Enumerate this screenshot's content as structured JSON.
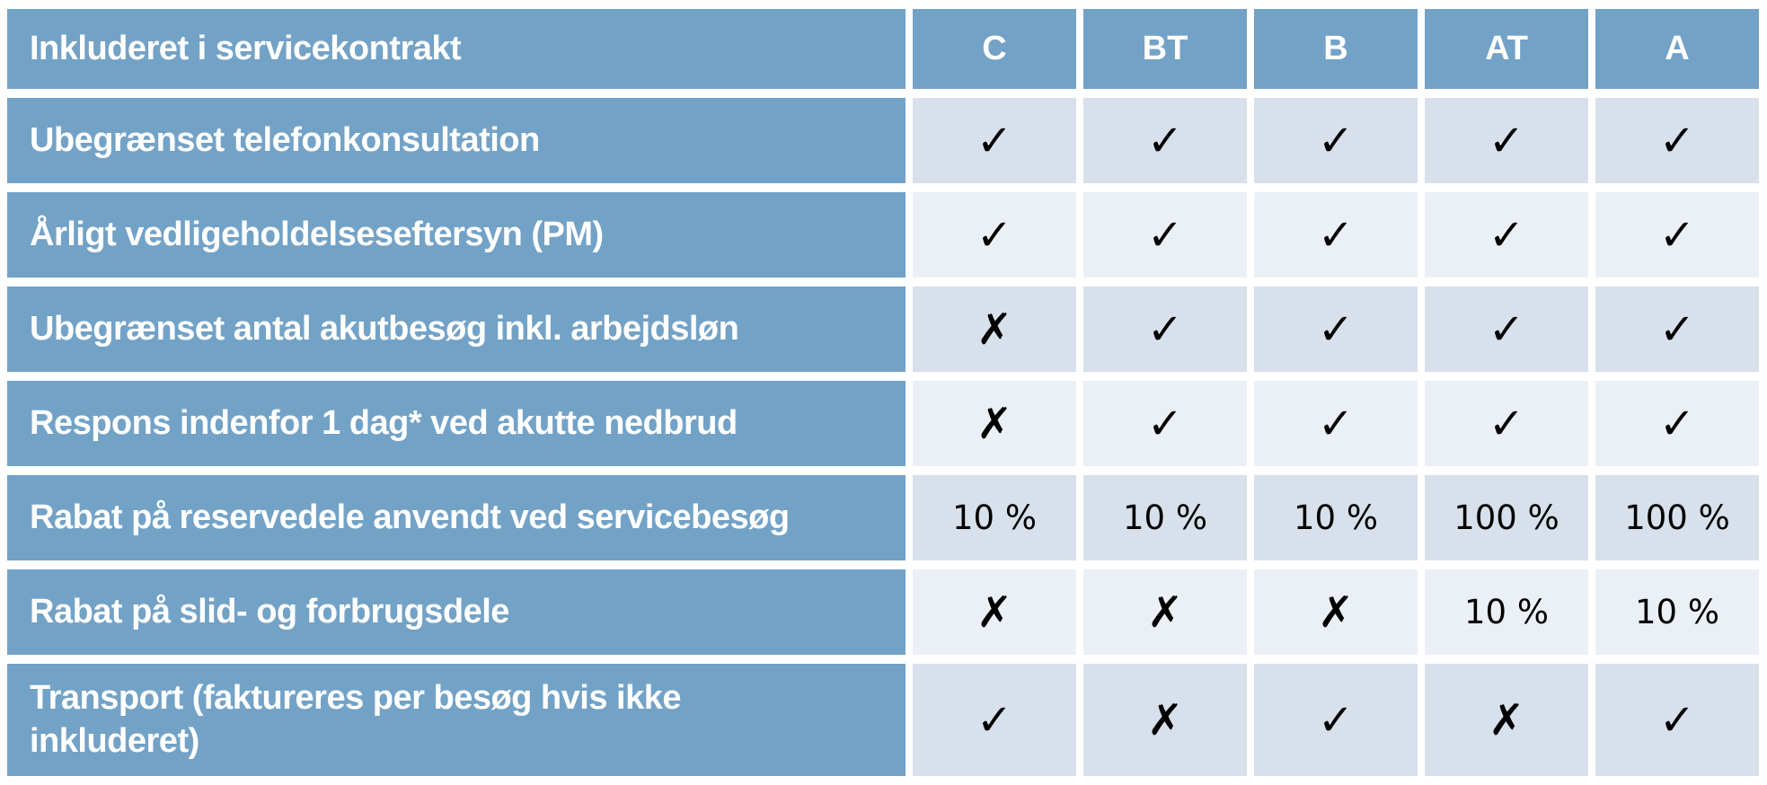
{
  "table": {
    "title_header": {
      "label": "Inkluderet i servicekontrakt",
      "columns": [
        "C",
        "BT",
        "B",
        "AT",
        "A"
      ]
    },
    "rows": [
      {
        "label": "Ubegrænset telefonkonsultation",
        "values": [
          "check",
          "check",
          "check",
          "check",
          "check"
        ]
      },
      {
        "label": "Årligt vedligeholdelseseftersyn (PM)",
        "values": [
          "check",
          "check",
          "check",
          "check",
          "check"
        ]
      },
      {
        "label": "Ubegrænset antal akutbesøg inkl. arbejdsløn",
        "values": [
          "cross",
          "check",
          "check",
          "check",
          "check"
        ]
      },
      {
        "label": "Respons indenfor 1 dag* ved akutte nedbrud",
        "values": [
          "cross",
          "check",
          "check",
          "check",
          "check"
        ]
      },
      {
        "label": "Rabat på reservedele anvendt ved servicebesøg",
        "values": [
          "10 %",
          "10 %",
          "10 %",
          "100 %",
          "100 %"
        ]
      },
      {
        "label": "Rabat på slid- og forbrugsdele",
        "values": [
          "cross",
          "cross",
          "cross",
          "10 %",
          "10 %"
        ]
      },
      {
        "label": "Transport (faktureres per besøg hvis ikke inkluderet)",
        "values": [
          "check",
          "cross",
          "check",
          "cross",
          "check"
        ]
      }
    ],
    "glyphs": {
      "check": "✓",
      "cross": "✗"
    },
    "colors": {
      "header_blue": "#73A2C7",
      "row_dark": "#D7E0EB",
      "row_light": "#EBF0F6",
      "header_text": "#FFFFFF",
      "mark_text": "#000000",
      "gap": "#FFFFFF"
    }
  }
}
